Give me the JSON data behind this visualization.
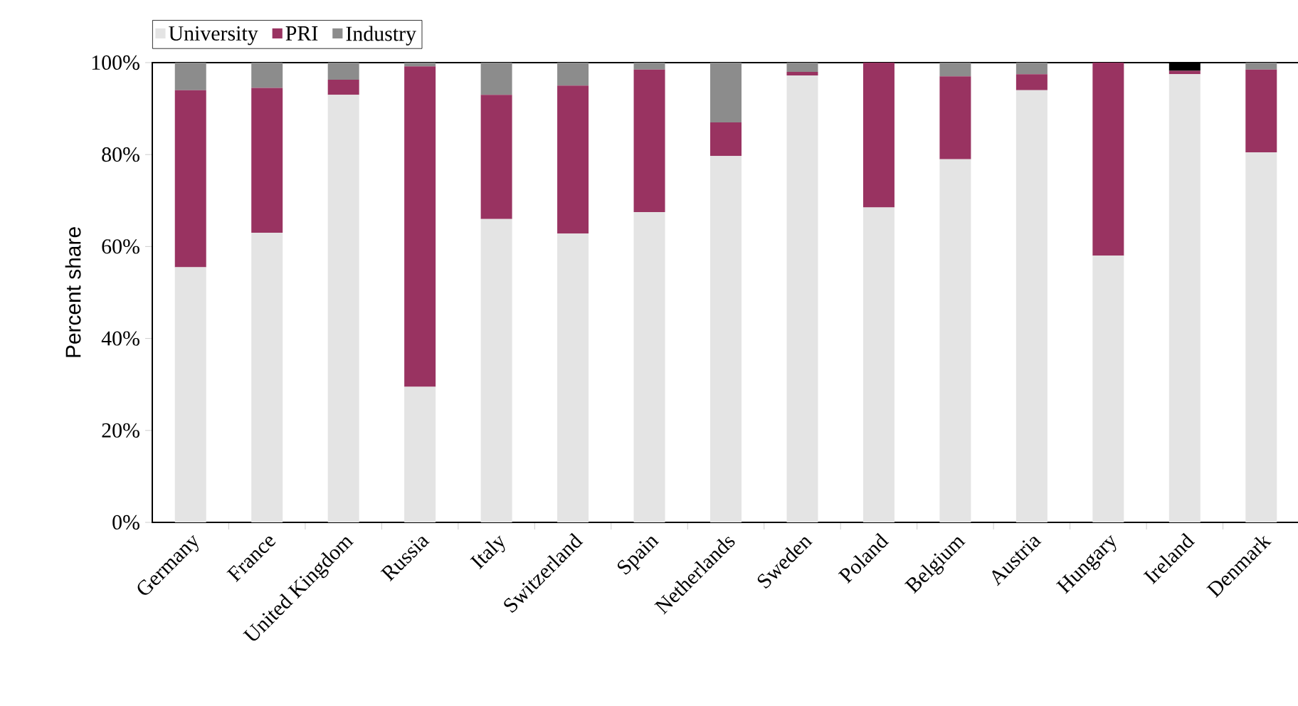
{
  "chart_data": {
    "type": "bar",
    "stacked": true,
    "ylabel": "Percent share",
    "legend": "top left",
    "categories": [
      "Germany",
      "France",
      "United Kingdom",
      "Russia",
      "Italy",
      "Switzerland",
      "Spain",
      "Netherlands",
      "Sweden",
      "Poland",
      "Belgium",
      "Austria",
      "Hungary",
      "Ireland",
      "Denmark"
    ],
    "series": [
      {
        "name": "University",
        "color": "#e4e4e4",
        "values": [
          55.5,
          63,
          93,
          29.5,
          66,
          62.8,
          67.5,
          79.7,
          97.2,
          68.5,
          79,
          94,
          58,
          97.5,
          80.5
        ]
      },
      {
        "name": "PRI",
        "color": "#993361",
        "values": [
          38.5,
          31.5,
          3.3,
          69.7,
          27,
          32.2,
          31,
          7.3,
          0.8,
          31.5,
          18,
          3.5,
          42,
          0.7,
          18
        ]
      },
      {
        "name": "Industry",
        "color": "#8c8c8c",
        "values": [
          6,
          5.5,
          3.7,
          0.8,
          7,
          5,
          1.5,
          13,
          2,
          0,
          3,
          2.5,
          0,
          0,
          1.5
        ]
      },
      {
        "color": "#000000",
        "values": [
          0,
          0,
          0,
          0,
          0,
          0,
          0,
          0,
          0,
          0,
          0,
          0,
          0,
          1.8,
          0
        ]
      }
    ],
    "ylim": [
      0,
      100
    ],
    "yticks": [
      {
        "value": 0,
        "label": "0%"
      },
      {
        "value": 20,
        "label": "20%"
      },
      {
        "value": 40,
        "label": "40%"
      },
      {
        "value": 60,
        "label": "60%"
      },
      {
        "value": 80,
        "label": "80%"
      },
      {
        "value": 100,
        "label": "100%"
      }
    ]
  }
}
